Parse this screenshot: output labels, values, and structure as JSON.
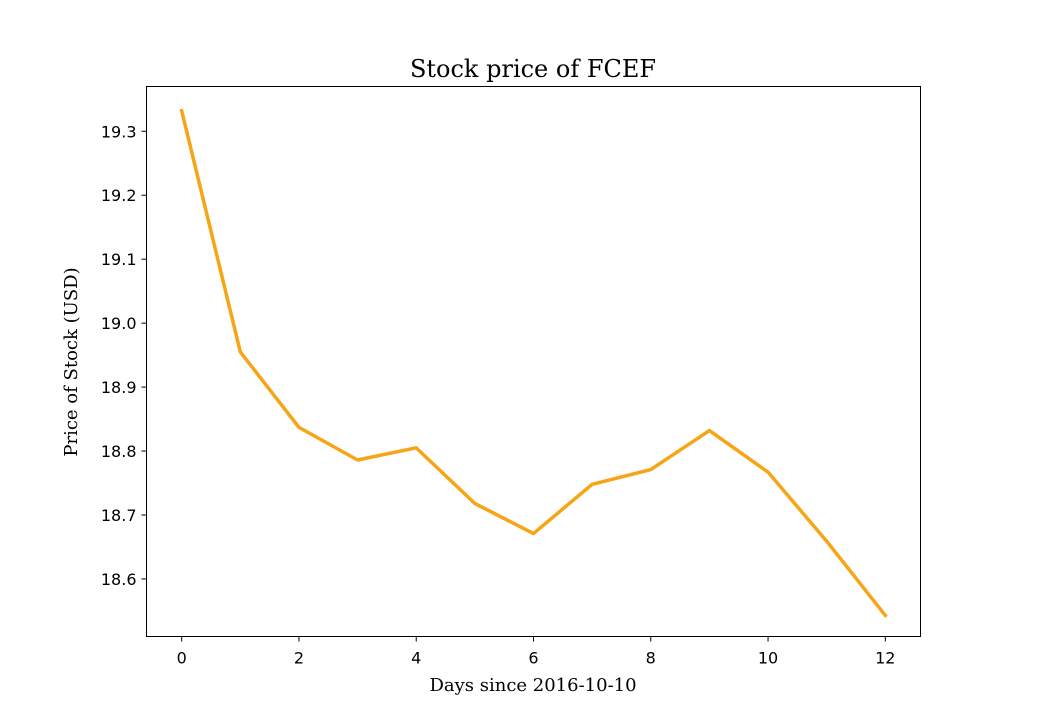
{
  "chart_data": {
    "type": "line",
    "title": "Stock price of FCEF",
    "xlabel": "Days since 2016-10-10",
    "ylabel": "Price of Stock (USD)",
    "x": [
      0,
      1,
      2,
      3,
      4,
      5,
      6,
      7,
      8,
      9,
      10,
      11,
      12
    ],
    "series": [
      {
        "values": [
          19.332,
          18.955,
          18.837,
          18.786,
          18.805,
          18.718,
          18.671,
          18.748,
          18.771,
          18.832,
          18.767,
          18.659,
          18.543
        ],
        "color": "#f5a516"
      }
    ],
    "xlim": [
      -0.6,
      12.6
    ],
    "ylim": [
      18.51,
      19.37
    ],
    "xticks": [
      0,
      2,
      4,
      6,
      8,
      10,
      12
    ],
    "xtick_labels": [
      "0",
      "2",
      "4",
      "6",
      "8",
      "10",
      "12"
    ],
    "yticks": [
      18.6,
      18.7,
      18.8,
      18.9,
      19.0,
      19.1,
      19.2,
      19.3
    ],
    "ytick_labels": [
      "18.6",
      "18.7",
      "18.8",
      "18.9",
      "19.0",
      "19.1",
      "19.2",
      "19.3"
    ],
    "grid": false,
    "legend": "none"
  }
}
